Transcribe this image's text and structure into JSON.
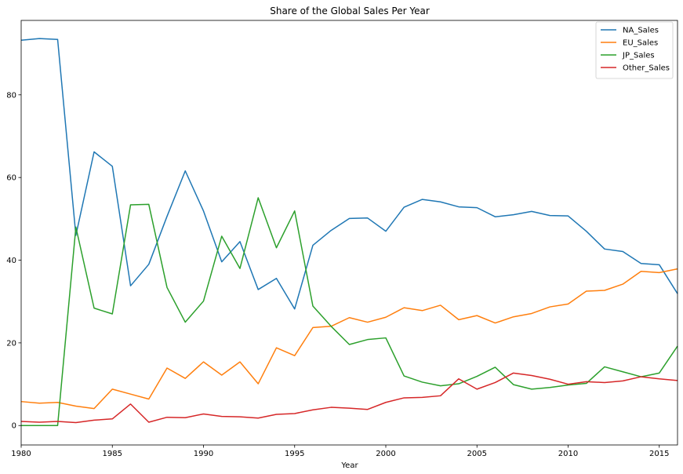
{
  "chart_data": {
    "type": "line",
    "title": "Share of the Global Sales Per Year",
    "xlabel": "Year",
    "ylabel": "",
    "xlim": [
      1980,
      2016
    ],
    "ylim": [
      -4.7,
      98
    ],
    "xticks": [
      1980,
      1985,
      1990,
      1995,
      2000,
      2005,
      2010,
      2015
    ],
    "yticks": [
      0,
      20,
      40,
      60,
      80
    ],
    "grid": false,
    "legend_position": "top-right",
    "x": [
      1980,
      1981,
      1982,
      1983,
      1984,
      1985,
      1986,
      1987,
      1988,
      1989,
      1990,
      1991,
      1992,
      1993,
      1994,
      1995,
      1996,
      1997,
      1998,
      1999,
      2000,
      2001,
      2002,
      2003,
      2004,
      2005,
      2006,
      2007,
      2008,
      2009,
      2010,
      2011,
      2012,
      2013,
      2014,
      2015,
      2016
    ],
    "series": [
      {
        "name": "NA_Sales",
        "color": "#1f77b4",
        "values": [
          93.2,
          93.6,
          93.4,
          46.0,
          66.2,
          62.7,
          33.8,
          39.0,
          50.6,
          61.6,
          51.9,
          39.6,
          44.5,
          32.9,
          35.6,
          28.2,
          43.6,
          47.2,
          50.1,
          50.2,
          47.0,
          52.8,
          54.7,
          54.1,
          52.9,
          52.7,
          50.5,
          51.0,
          51.8,
          50.8,
          50.7,
          47.0,
          42.7,
          42.1,
          39.2,
          38.9,
          31.9
        ]
      },
      {
        "name": "EU_Sales",
        "color": "#ff7f0e",
        "values": [
          5.8,
          5.4,
          5.6,
          4.7,
          4.1,
          8.8,
          7.6,
          6.4,
          13.9,
          11.4,
          15.4,
          12.2,
          15.4,
          10.1,
          18.8,
          16.9,
          23.7,
          24.0,
          26.1,
          25.0,
          26.2,
          28.5,
          27.8,
          29.1,
          25.6,
          26.6,
          24.8,
          26.3,
          27.1,
          28.7,
          29.4,
          32.5,
          32.7,
          34.2,
          37.3,
          37.0,
          37.9
        ]
      },
      {
        "name": "JP_Sales",
        "color": "#2ca02c",
        "values": [
          0.0,
          0.0,
          0.0,
          48.0,
          28.4,
          27.0,
          53.4,
          53.5,
          33.4,
          25.0,
          30.1,
          45.8,
          38.0,
          55.1,
          43.0,
          51.9,
          28.9,
          24.0,
          19.6,
          20.8,
          21.2,
          12.0,
          10.5,
          9.6,
          10.1,
          11.9,
          14.1,
          9.9,
          8.8,
          9.2,
          9.8,
          10.2,
          14.2,
          13.0,
          11.8,
          12.7,
          19.2
        ]
      },
      {
        "name": "Other_Sales",
        "color": "#d62728",
        "values": [
          1.0,
          0.8,
          1.0,
          0.7,
          1.3,
          1.6,
          5.2,
          0.8,
          2.0,
          1.9,
          2.8,
          2.2,
          2.1,
          1.8,
          2.7,
          2.9,
          3.8,
          4.4,
          4.2,
          3.9,
          5.6,
          6.7,
          6.8,
          7.2,
          11.3,
          8.8,
          10.4,
          12.7,
          12.1,
          11.2,
          10.0,
          10.6,
          10.4,
          10.8,
          11.8,
          11.3,
          10.9
        ]
      }
    ]
  }
}
